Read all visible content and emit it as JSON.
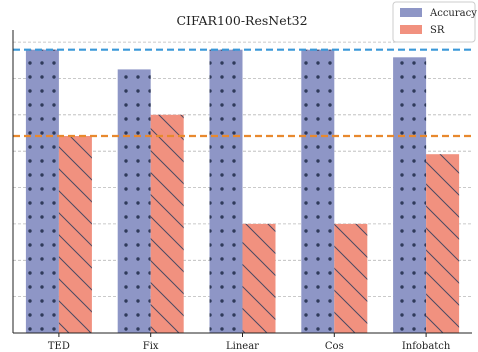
{
  "chart_data": {
    "type": "bar",
    "title": "CIFAR100-ResNet32",
    "xlabel": "",
    "ylabel": "",
    "categories": [
      "TED",
      "Fix",
      "Linear",
      "Cos",
      "Infobatch"
    ],
    "series": [
      {
        "name": "Accuracy",
        "values": [
          0.935,
          0.87,
          0.935,
          0.935,
          0.91
        ],
        "color": "#8e96c6",
        "pattern": "dots"
      },
      {
        "name": "SR",
        "values": [
          0.65,
          0.72,
          0.36,
          0.36,
          0.59
        ],
        "color": "#f1917f",
        "pattern": "diagonal-hatch"
      }
    ],
    "reference_lines": [
      {
        "value": 0.935,
        "color": "#3a98d8",
        "style": "dashed"
      },
      {
        "value": 0.65,
        "color": "#e8892e",
        "style": "dashed"
      }
    ],
    "ylim": [
      0,
      1
    ],
    "y_tick_labels_shown": false,
    "grid": true,
    "grid_axis": "y",
    "legend_position": "top-right"
  }
}
